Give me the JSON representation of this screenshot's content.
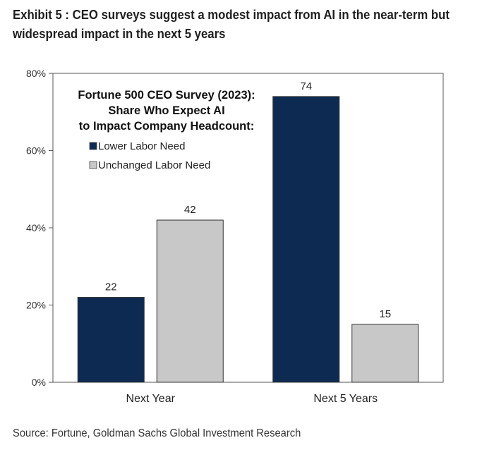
{
  "exhibit": {
    "title_line1": "Exhibit 5 : CEO surveys suggest a modest impact from AI in the near-term but",
    "title_line2": "widespread impact in the next 5 years",
    "source": "Source: Fortune, Goldman Sachs Global Investment Research"
  },
  "chart_data": {
    "type": "bar",
    "title_lines": [
      "Fortune 500 CEO Survey (2023):",
      "Share Who Expect AI",
      "to Impact Company Headcount:"
    ],
    "categories": [
      "Next Year",
      "Next 5 Years"
    ],
    "series": [
      {
        "name": "Lower Labor Need",
        "values": [
          22,
          74
        ],
        "color": "#0d2b52"
      },
      {
        "name": "Unchanged Labor Need",
        "values": [
          42,
          15
        ],
        "color": "#c8c8c8"
      }
    ],
    "y_ticks": [
      "0%",
      "20%",
      "40%",
      "60%",
      "80%"
    ],
    "ylim": [
      0,
      80
    ],
    "legend_position": "top-left",
    "grid": false
  }
}
